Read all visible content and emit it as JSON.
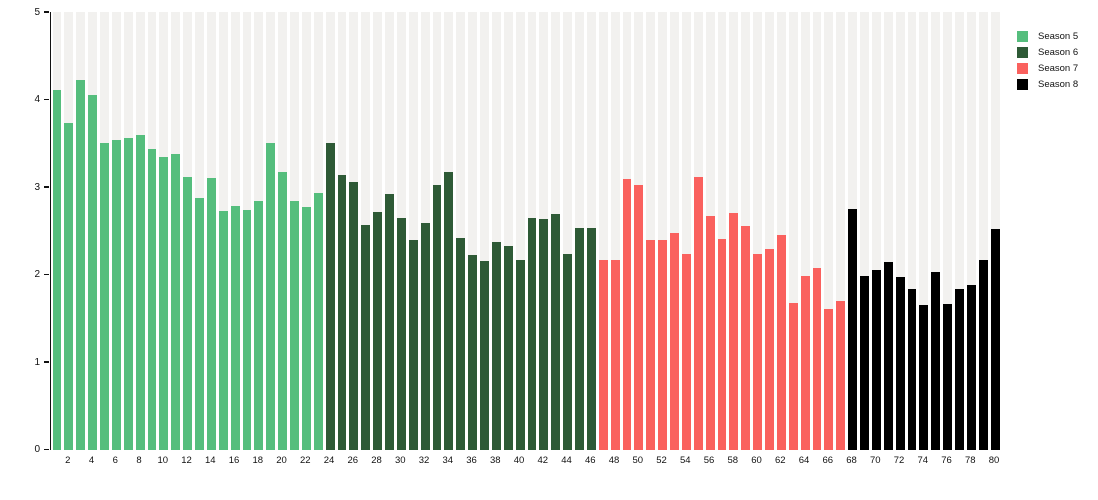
{
  "chart_data": {
    "type": "bar",
    "title": "",
    "xlabel": "",
    "ylabel": "",
    "ylim": [
      0,
      5
    ],
    "yticks": [
      0,
      1,
      2,
      3,
      4,
      5
    ],
    "xticks": [
      2,
      4,
      6,
      8,
      10,
      12,
      14,
      16,
      18,
      20,
      22,
      24,
      26,
      28,
      30,
      32,
      34,
      36,
      38,
      40,
      42,
      44,
      46,
      48,
      50,
      52,
      54,
      56,
      58,
      60,
      62,
      64,
      66,
      68,
      70,
      72,
      74,
      76,
      78,
      80
    ],
    "x_start": 1,
    "bar_count": 80,
    "grid": false,
    "legend_position": "top-right",
    "background_stripe_color": "#f2f1ef",
    "axis_color": "#111111",
    "series": [
      {
        "name": "Season 5",
        "color": "#55be7d",
        "episodes": [
          1,
          23
        ],
        "values": [
          4.11,
          3.73,
          4.22,
          4.05,
          3.5,
          3.54,
          3.56,
          3.6,
          3.43,
          3.34,
          3.38,
          3.11,
          2.88,
          3.1,
          2.73,
          2.78,
          2.74,
          2.84,
          3.5,
          3.17,
          2.84,
          2.77,
          2.93
        ]
      },
      {
        "name": "Season 6",
        "color": "#2e5a36",
        "episodes": [
          24,
          46
        ],
        "values": [
          3.5,
          3.14,
          3.06,
          2.57,
          2.72,
          2.92,
          2.65,
          2.39,
          2.59,
          3.02,
          3.17,
          2.42,
          2.22,
          2.15,
          2.37,
          2.33,
          2.17,
          2.65,
          2.64,
          2.69,
          2.23,
          2.53,
          2.53
        ]
      },
      {
        "name": "Season 7",
        "color": "#fa615e",
        "episodes": [
          47,
          67
        ],
        "values": [
          2.17,
          2.17,
          3.09,
          3.02,
          2.39,
          2.39,
          2.48,
          2.23,
          3.11,
          2.67,
          2.41,
          2.7,
          2.55,
          2.24,
          2.29,
          2.45,
          1.68,
          1.98,
          2.07,
          1.61,
          1.7
        ]
      },
      {
        "name": "Season 8",
        "color": "#000000",
        "episodes": [
          68,
          80
        ],
        "values": [
          2.75,
          1.98,
          2.05,
          2.14,
          1.97,
          1.83,
          1.65,
          2.03,
          1.66,
          1.83,
          1.88,
          2.17,
          2.52
        ]
      }
    ]
  },
  "legend": {
    "items": [
      {
        "label": "Season 5",
        "color": "#55be7d"
      },
      {
        "label": "Season 6",
        "color": "#2e5a36"
      },
      {
        "label": "Season 7",
        "color": "#fa615e"
      },
      {
        "label": "Season 8",
        "color": "#000000"
      }
    ]
  }
}
